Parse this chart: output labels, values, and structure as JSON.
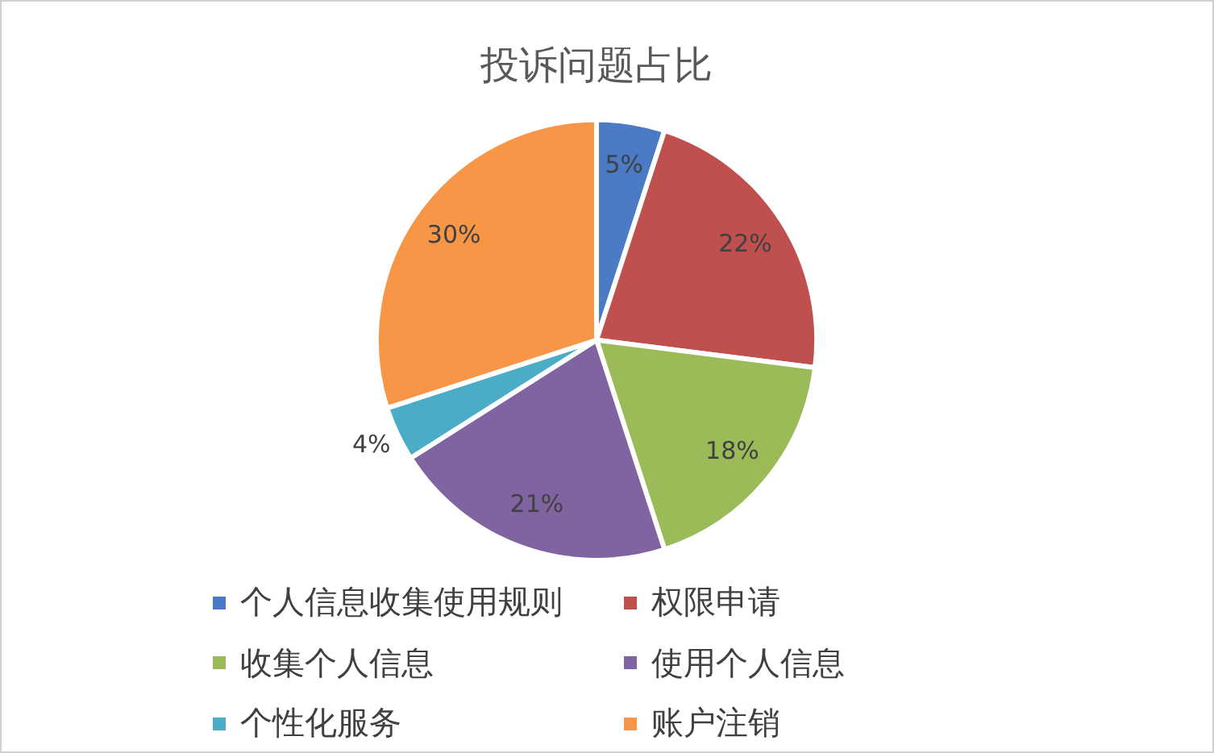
{
  "chart_data": {
    "type": "pie",
    "title": "投诉问题占比",
    "categories": [
      "个人信息收集使用规则",
      "权限申请",
      "收集个人信息",
      "使用个人信息",
      "个性化服务",
      "账户注销"
    ],
    "values": [
      5,
      22,
      18,
      21,
      4,
      30
    ],
    "colors": [
      "#4a7bc4",
      "#c0504d",
      "#9bbb59",
      "#8064a2",
      "#4bacc6",
      "#f79646"
    ],
    "value_labels": [
      "5%",
      "22%",
      "18%",
      "21%",
      "4%",
      "30%"
    ],
    "legend": "bottom"
  }
}
